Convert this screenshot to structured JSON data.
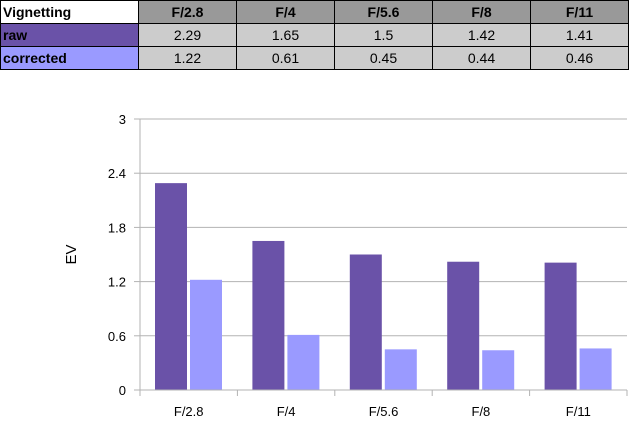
{
  "table": {
    "header_label": "Vignetting",
    "columns": [
      "F/2.8",
      "F/4",
      "F/5.6",
      "F/8",
      "F/11"
    ],
    "rows": [
      {
        "label": "raw",
        "values": [
          "2.29",
          "1.65",
          "1.5",
          "1.42",
          "1.41"
        ]
      },
      {
        "label": "corrected",
        "values": [
          "1.22",
          "0.61",
          "0.45",
          "0.44",
          "0.46"
        ]
      }
    ]
  },
  "colors": {
    "raw": "#6a52a8",
    "corrected": "#9a9aff",
    "header_fill": "#999999",
    "cell_fill": "#cccccc"
  },
  "chart_data": {
    "type": "bar",
    "categories": [
      "F/2.8",
      "F/4",
      "F/5.6",
      "F/8",
      "F/11"
    ],
    "series": [
      {
        "name": "raw",
        "values": [
          2.29,
          1.65,
          1.5,
          1.42,
          1.41
        ]
      },
      {
        "name": "corrected",
        "values": [
          1.22,
          0.61,
          0.45,
          0.44,
          0.46
        ]
      }
    ],
    "title": "",
    "xlabel": "",
    "ylabel": "EV",
    "ylim": [
      0,
      3
    ],
    "yticks": [
      0,
      0.6,
      1.2,
      1.8,
      2.4,
      3
    ],
    "ytick_labels": [
      "0",
      "0.6",
      "1.2",
      "1.8",
      "2.4",
      "3"
    ],
    "grid": true
  }
}
